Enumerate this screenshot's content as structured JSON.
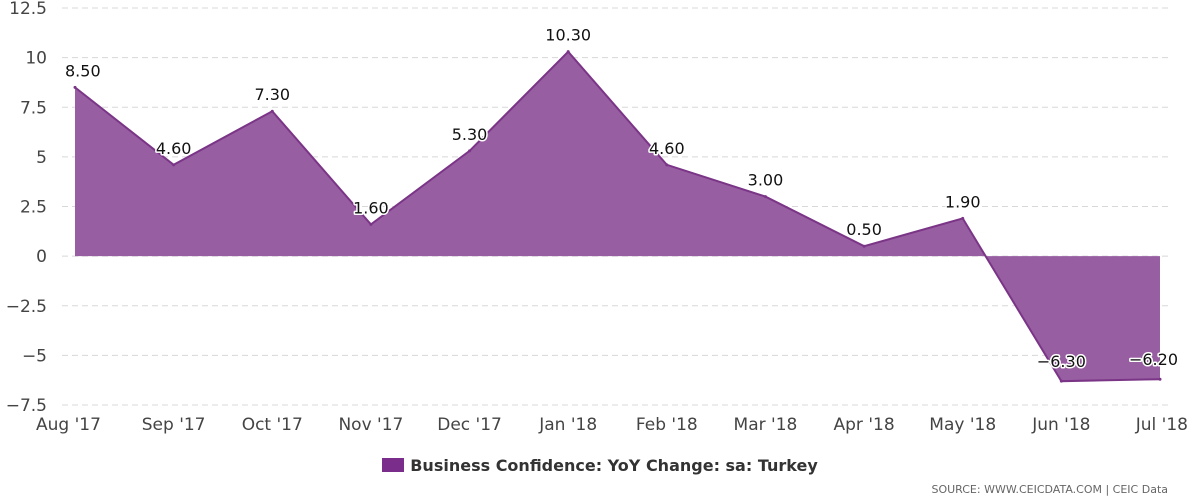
{
  "chart_data": {
    "type": "area",
    "categories": [
      "Aug '17",
      "Sep '17",
      "Oct '17",
      "Nov '17",
      "Dec '17",
      "Jan '18",
      "Feb '18",
      "Mar '18",
      "Apr '18",
      "May '18",
      "Jun '18",
      "Jul '18"
    ],
    "series": [
      {
        "name": "Business Confidence: YoY Change: sa: Turkey",
        "values": [
          8.5,
          4.6,
          7.3,
          1.6,
          5.3,
          10.3,
          4.6,
          3.0,
          0.5,
          1.9,
          -6.3,
          -6.2
        ],
        "data_labels": [
          "8.50",
          "4.60",
          "7.30",
          "1.60",
          "5.30",
          "10.30",
          "4.60",
          "3.00",
          "0.50",
          "1.90",
          "−6.30",
          "−6.20"
        ]
      }
    ],
    "ylim": [
      -7.5,
      12.5
    ],
    "yticks": [
      12.5,
      10,
      7.5,
      5,
      2.5,
      0,
      -2.5,
      -5,
      -7.5
    ],
    "ytick_labels": [
      "12.5",
      "10",
      "7.5",
      "5",
      "2.5",
      "0",
      "−2.5",
      "−5",
      "−7.5"
    ],
    "grid": true,
    "legend_position": "bottom-center",
    "colors": {
      "fill": "#985ea2",
      "line": "#7b3587",
      "swatch": "#7b2d8b"
    }
  },
  "legend": {
    "label": "Business Confidence: YoY Change: sa: Turkey"
  },
  "source": {
    "text": "SOURCE: WWW.CEICDATA.COM | CEIC Data"
  }
}
